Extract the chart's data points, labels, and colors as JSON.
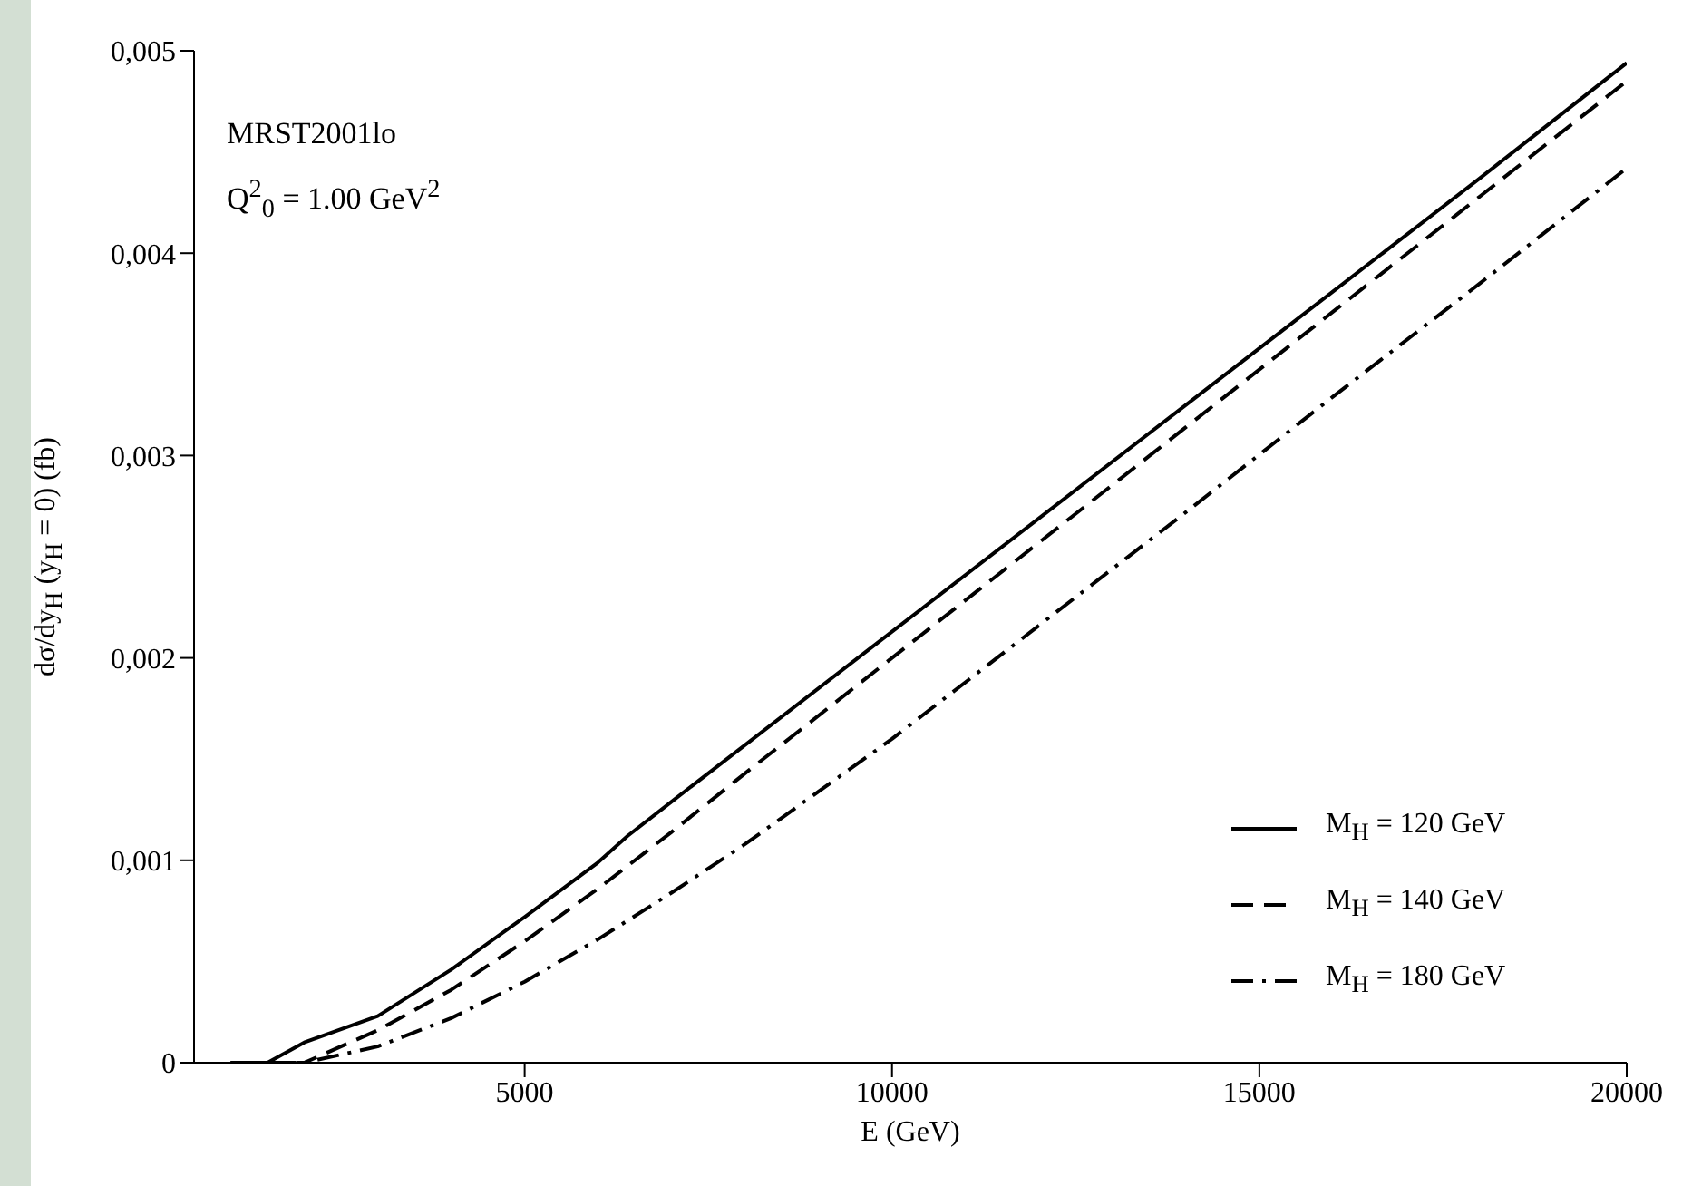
{
  "chart_data": {
    "type": "line",
    "xlabel": "E (GeV)",
    "ylabel": "dσ/dy$_{H}$  (y$_{H}$ = 0)  (fb)",
    "annotations": [
      "MRST2001lo",
      "Q$^{2}$$_{0}$ = 1.00 GeV$^{2}$"
    ],
    "xlim": [
      500,
      20000
    ],
    "xticks": [
      5000,
      10000,
      15000,
      20000
    ],
    "ylim": [
      0,
      0.005
    ],
    "yticks": [
      0,
      {
        "value": 0.001,
        "label": "0,001"
      },
      {
        "value": 0.002,
        "label": "0,002"
      },
      {
        "value": 0.003,
        "label": "0,003"
      },
      {
        "value": 0.004,
        "label": "0,004"
      },
      {
        "value": 0.005,
        "label": "0,005"
      }
    ],
    "grid": false,
    "legend": "bottom right",
    "marker": "none",
    "series": [
      {
        "name": "M$_{H}$ = 120 GeV",
        "color": "#000000",
        "line_style": "solid",
        "x": [
          1000,
          1500,
          2000,
          3000,
          4000,
          5000,
          6000,
          6400,
          7000,
          8000,
          10000,
          12000,
          14000,
          16000,
          18000,
          20000
        ],
        "values": [
          0,
          0,
          0.0001,
          0.00023,
          0.00046,
          0.00072,
          0.00099,
          0.00112,
          0.00129,
          0.00157,
          0.00213,
          0.00269,
          0.00325,
          0.00381,
          0.00437,
          0.00494
        ]
      },
      {
        "name": "M$_{H}$ = 140 GeV",
        "color": "#000000",
        "line_style": "dashed",
        "x": [
          1000,
          1500,
          2000,
          3000,
          4000,
          5000,
          6000,
          7000,
          8000,
          10000,
          12000,
          14000,
          16000,
          18000,
          20000
        ],
        "values": [
          0,
          0,
          0,
          0.00016,
          0.00036,
          0.0006,
          0.00086,
          0.00114,
          0.00143,
          0.002,
          0.00257,
          0.00314,
          0.00371,
          0.00428,
          0.00485
        ]
      },
      {
        "name": "M$_{H}$ = 180 GeV",
        "color": "#000000",
        "line_style": "dashdot",
        "x": [
          1000,
          1500,
          2000,
          3000,
          4000,
          5000,
          6000,
          7000,
          8000,
          10000,
          12000,
          14000,
          16000,
          18000,
          20000
        ],
        "values": [
          0,
          0,
          0,
          8e-05,
          0.00022,
          0.0004,
          0.00061,
          0.00084,
          0.00108,
          0.0016,
          0.00216,
          0.00272,
          0.00329,
          0.00385,
          0.00442
        ]
      }
    ]
  }
}
